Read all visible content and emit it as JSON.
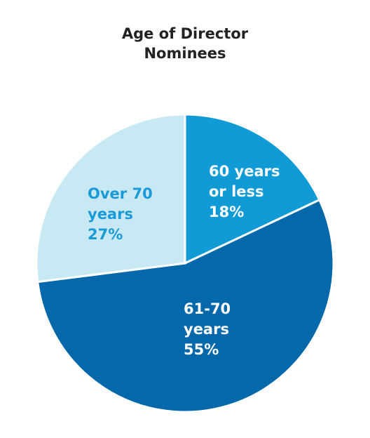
{
  "chart_data": {
    "type": "pie",
    "title": "Age of Director Nominees",
    "categories": [
      "60 years or less",
      "61-70 years",
      "Over 70 years"
    ],
    "values": [
      18,
      55,
      27
    ],
    "value_labels": [
      "18%",
      "55%",
      "27%"
    ],
    "colors": [
      "#109bd7",
      "#0568aa",
      "#c8e9f3"
    ],
    "label_colors": [
      "#ffffff",
      "#ffffff",
      "#1a9ad6"
    ],
    "start_angle": 0,
    "direction": "clockwise"
  }
}
